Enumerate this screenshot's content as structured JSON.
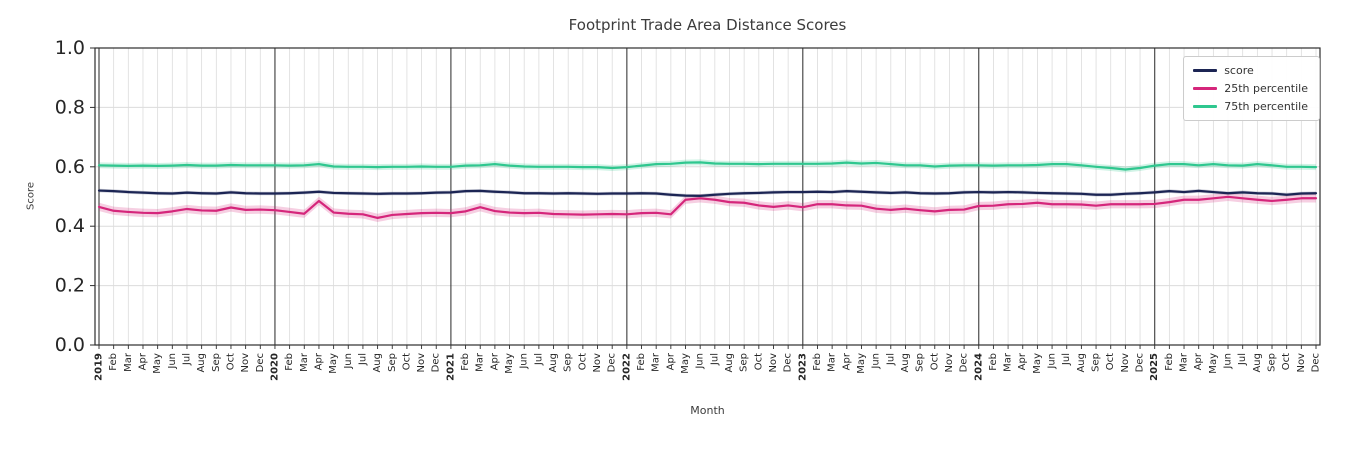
{
  "chart_data": {
    "type": "line",
    "title": "Footprint Trade Area Distance Scores",
    "xlabel": "Month",
    "ylabel": "Score",
    "ylim": [
      0.0,
      1.0
    ],
    "yticks": [
      0.0,
      0.2,
      0.4,
      0.6,
      0.8,
      1.0
    ],
    "grid": true,
    "legend_position": "upper right",
    "years": [
      "2019",
      "2020",
      "2021",
      "2022",
      "2023",
      "2024",
      "2025"
    ],
    "month_abbrevs": [
      "Jan",
      "Feb",
      "Mar",
      "Apr",
      "May",
      "Jun",
      "Jul",
      "Aug",
      "Sep",
      "Oct",
      "Nov",
      "Dec"
    ],
    "series": [
      {
        "name": "score",
        "color": "#1c2554",
        "band_halfwidth": 0.006,
        "values": [
          0.52,
          0.518,
          0.515,
          0.513,
          0.511,
          0.51,
          0.513,
          0.511,
          0.51,
          0.514,
          0.511,
          0.51,
          0.51,
          0.511,
          0.513,
          0.516,
          0.512,
          0.511,
          0.51,
          0.509,
          0.51,
          0.51,
          0.511,
          0.513,
          0.514,
          0.518,
          0.519,
          0.516,
          0.514,
          0.511,
          0.511,
          0.51,
          0.511,
          0.51,
          0.509,
          0.51,
          0.51,
          0.511,
          0.51,
          0.506,
          0.503,
          0.502,
          0.506,
          0.509,
          0.511,
          0.512,
          0.514,
          0.515,
          0.515,
          0.516,
          0.515,
          0.518,
          0.516,
          0.514,
          0.512,
          0.514,
          0.511,
          0.51,
          0.511,
          0.514,
          0.515,
          0.514,
          0.515,
          0.514,
          0.512,
          0.511,
          0.51,
          0.509,
          0.506,
          0.506,
          0.509,
          0.511,
          0.514,
          0.518,
          0.515,
          0.519,
          0.515,
          0.511,
          0.514,
          0.511,
          0.51,
          0.506,
          0.51,
          0.511
        ]
      },
      {
        "name": "25th percentile",
        "color": "#d5267b",
        "band_halfwidth": 0.014,
        "values": [
          0.465,
          0.452,
          0.448,
          0.445,
          0.444,
          0.45,
          0.458,
          0.453,
          0.452,
          0.463,
          0.455,
          0.456,
          0.454,
          0.448,
          0.442,
          0.485,
          0.446,
          0.442,
          0.44,
          0.428,
          0.438,
          0.441,
          0.444,
          0.445,
          0.444,
          0.45,
          0.464,
          0.451,
          0.446,
          0.444,
          0.445,
          0.441,
          0.44,
          0.439,
          0.44,
          0.441,
          0.44,
          0.444,
          0.445,
          0.44,
          0.489,
          0.494,
          0.489,
          0.481,
          0.479,
          0.47,
          0.465,
          0.47,
          0.464,
          0.474,
          0.474,
          0.47,
          0.469,
          0.459,
          0.455,
          0.459,
          0.454,
          0.45,
          0.455,
          0.456,
          0.468,
          0.469,
          0.474,
          0.475,
          0.479,
          0.474,
          0.474,
          0.473,
          0.469,
          0.474,
          0.474,
          0.474,
          0.475,
          0.481,
          0.489,
          0.489,
          0.494,
          0.499,
          0.494,
          0.489,
          0.485,
          0.489,
          0.494,
          0.494
        ]
      },
      {
        "name": "75th percentile",
        "color": "#2fc78f",
        "band_halfwidth": 0.01,
        "values": [
          0.605,
          0.604,
          0.603,
          0.604,
          0.603,
          0.604,
          0.606,
          0.604,
          0.604,
          0.606,
          0.605,
          0.605,
          0.605,
          0.604,
          0.605,
          0.609,
          0.601,
          0.6,
          0.6,
          0.599,
          0.6,
          0.6,
          0.601,
          0.6,
          0.6,
          0.604,
          0.605,
          0.609,
          0.604,
          0.601,
          0.6,
          0.6,
          0.6,
          0.599,
          0.599,
          0.596,
          0.599,
          0.604,
          0.609,
          0.61,
          0.614,
          0.615,
          0.611,
          0.61,
          0.61,
          0.609,
          0.61,
          0.61,
          0.61,
          0.61,
          0.611,
          0.614,
          0.611,
          0.613,
          0.609,
          0.605,
          0.605,
          0.601,
          0.604,
          0.605,
          0.605,
          0.604,
          0.605,
          0.605,
          0.606,
          0.609,
          0.609,
          0.605,
          0.6,
          0.596,
          0.591,
          0.596,
          0.604,
          0.609,
          0.609,
          0.605,
          0.609,
          0.605,
          0.604,
          0.609,
          0.605,
          0.6,
          0.6,
          0.599
        ]
      }
    ]
  }
}
